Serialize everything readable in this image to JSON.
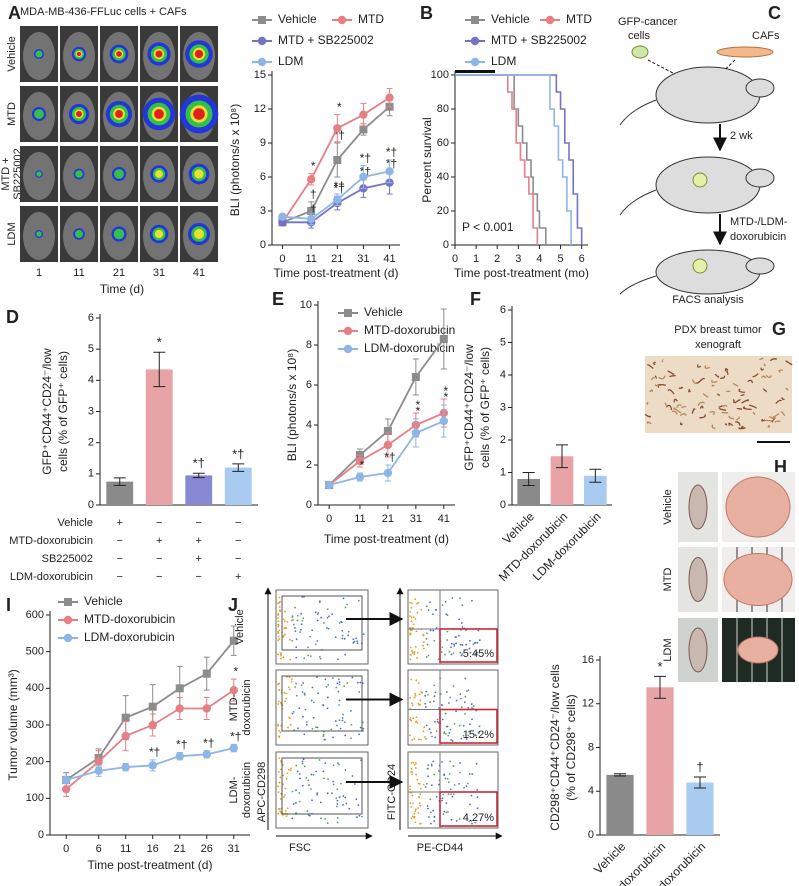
{
  "figure_labels": [
    "A",
    "B",
    "C",
    "D",
    "E",
    "F",
    "G",
    "H",
    "I",
    "J"
  ],
  "imaging": {
    "title": "MDA-MB-436-FFLuc cells + CAFs",
    "rows": [
      [
        "Vehicle"
      ],
      [
        "MTD"
      ],
      [
        "MTD +",
        "SB225002"
      ],
      [
        "LDM"
      ]
    ],
    "columns": [
      1,
      11,
      21,
      31,
      41
    ],
    "xlabel": "Time (d)"
  },
  "schematic": {
    "cancer_cells": [
      "GFP-cancer",
      "cells"
    ],
    "cafs": "CAFs",
    "step1": "2 wk",
    "step2": [
      "MTD-/LDM-",
      "doxorubicin"
    ],
    "step3": "FACS analysis"
  },
  "pdx": {
    "title": [
      "PDX breast tumor",
      "xenograft"
    ]
  },
  "tumors": {
    "rows": [
      "Vehicle",
      "MTD",
      "LDM"
    ]
  },
  "flow": {
    "rows": [
      [
        "Vehicle"
      ],
      [
        "MTD-",
        "doxorubicin"
      ],
      [
        "LDM-",
        "doxorubicin"
      ]
    ],
    "gate_percent": [
      "5.45%",
      "15.2%",
      "4.27%"
    ],
    "x1": "FSC",
    "y1": "APC-CD298",
    "x2": "PE-CD44",
    "y2": "FITC-CD24"
  },
  "chart_data": [
    {
      "type": "line",
      "x": [
        0,
        11,
        21,
        31,
        41
      ],
      "xlim": [
        -4,
        45
      ],
      "xticks": [
        0,
        11,
        21,
        31,
        41
      ],
      "ylim": [
        0,
        15
      ],
      "yticks": [
        0,
        3,
        6,
        9,
        12,
        15
      ],
      "xlabel": "Time post-treatment (d)",
      "ylabel": [
        "BLI (photons/s x 10⁸)"
      ],
      "series": [
        {
          "name": "Vehicle",
          "color": "#8c8c8c",
          "marker": "square",
          "values": [
            2,
            3,
            7.5,
            10.2,
            12.2
          ],
          "errors": [
            0.2,
            0.8,
            1.5,
            0.5,
            0.8
          ],
          "annotations": [
            null,
            "†",
            "*†",
            null,
            null
          ]
        },
        {
          "name": "MTD",
          "color": "#e57f86",
          "marker": "circle",
          "values": [
            2,
            5.8,
            10.3,
            11.5,
            13
          ],
          "errors": [
            0.2,
            0.5,
            1.2,
            1,
            0.8
          ],
          "annotations": [
            null,
            "*",
            "*",
            null,
            null
          ]
        },
        {
          "name": "MTD + SB225002",
          "color": "#7474c7",
          "marker": "circle",
          "values": [
            2,
            2,
            3.7,
            5,
            5.5
          ],
          "errors": [
            0.3,
            0.5,
            0.6,
            0.8,
            1
          ],
          "annotations": [
            null,
            "†",
            "*†",
            "*†",
            "*†"
          ]
        },
        {
          "name": "LDM",
          "color": "#8db6e6",
          "marker": "circle",
          "values": [
            2.5,
            2.3,
            4,
            6,
            6.5
          ],
          "errors": [
            0.2,
            0.5,
            0.5,
            1,
            1
          ],
          "annotations": [
            null,
            null,
            "*†",
            "*†",
            "*†"
          ]
        }
      ]
    },
    {
      "type": "step",
      "xlim": [
        0,
        6.3
      ],
      "xticks": [
        0,
        1,
        2,
        3,
        4,
        5,
        6
      ],
      "ylim": [
        0,
        100
      ],
      "yticks": [
        0,
        20,
        40,
        60,
        80,
        100
      ],
      "xlabel": "Time post-treatment (mo)",
      "ylabel": [
        "Percent survival"
      ],
      "annotation": "P < 0.001",
      "series": [
        {
          "name": "Vehicle",
          "color": "#8c8c8c",
          "marker": "square",
          "x": [
            0,
            2.8,
            2.8,
            3.0,
            3.0,
            3.2,
            3.2,
            3.4,
            3.4,
            3.6,
            3.6,
            3.7,
            3.7,
            3.9,
            3.9,
            4.0,
            4.0,
            4.3,
            4.3
          ],
          "values": [
            100,
            100,
            80,
            80,
            70,
            70,
            60,
            60,
            50,
            50,
            40,
            40,
            30,
            30,
            20,
            20,
            10,
            10,
            0
          ]
        },
        {
          "name": "MTD",
          "color": "#e57f86",
          "marker": "circle",
          "x": [
            0,
            2.5,
            2.5,
            2.7,
            2.7,
            2.9,
            2.9,
            3.1,
            3.1,
            3.3,
            3.3,
            3.5,
            3.5,
            3.7,
            3.7,
            3.9,
            3.9
          ],
          "values": [
            100,
            100,
            90,
            90,
            80,
            80,
            60,
            60,
            50,
            50,
            40,
            40,
            30,
            30,
            10,
            10,
            0
          ]
        },
        {
          "name": "MTD + SB225002",
          "color": "#7474c7",
          "marker": "circle",
          "x": [
            0,
            4.8,
            4.8,
            5.0,
            5.0,
            5.2,
            5.2,
            5.4,
            5.4,
            5.6,
            5.6,
            5.8,
            5.8,
            6.0,
            6.0
          ],
          "values": [
            100,
            100,
            90,
            90,
            80,
            80,
            60,
            60,
            50,
            50,
            30,
            30,
            10,
            10,
            0
          ]
        },
        {
          "name": "LDM",
          "color": "#8db6e6",
          "marker": "circle",
          "x": [
            0,
            4.5,
            4.5,
            4.7,
            4.7,
            4.9,
            4.9,
            5.1,
            5.1,
            5.3,
            5.3,
            5.5,
            5.5
          ],
          "values": [
            100,
            100,
            80,
            80,
            70,
            70,
            50,
            50,
            40,
            40,
            20,
            20,
            0
          ]
        }
      ]
    },
    {
      "type": "bar",
      "ylim": [
        0,
        6
      ],
      "yticks": [
        0,
        1,
        2,
        3,
        4,
        5,
        6
      ],
      "ylabel": [
        "GFP⁺CD44⁺CD24⁻/low",
        "cells (% of GFP⁺ cells)"
      ],
      "values": [
        0.75,
        4.35,
        0.95,
        1.2
      ],
      "errors": [
        0.12,
        0.55,
        0.07,
        0.12
      ],
      "colors": [
        "#8a8a8a",
        "#e8a3a6",
        "#8787d2",
        "#a9cbef"
      ],
      "annotations": [
        null,
        "*",
        "*†",
        "*†"
      ],
      "treatments": [
        {
          "label": "Vehicle",
          "signs": [
            "+",
            "−",
            "−",
            "−"
          ]
        },
        {
          "label": "MTD-doxorubicin",
          "signs": [
            "−",
            "+",
            "+",
            "−"
          ]
        },
        {
          "label": "SB225002",
          "signs": [
            "−",
            "−",
            "+",
            "−"
          ]
        },
        {
          "label": "LDM-doxorubicin",
          "signs": [
            "−",
            "−",
            "−",
            "+"
          ]
        }
      ]
    },
    {
      "type": "line",
      "x": [
        0,
        11,
        21,
        31,
        41
      ],
      "xlim": [
        -4,
        45
      ],
      "xticks": [
        0,
        11,
        21,
        31,
        41
      ],
      "ylim": [
        0,
        10
      ],
      "yticks": [
        0,
        2,
        4,
        6,
        8,
        10
      ],
      "xlabel": "Time post-treatment (d)",
      "ylabel": [
        "BLI (photons/s x 10⁸)"
      ],
      "series": [
        {
          "name": "Vehicle",
          "color": "#8c8c8c",
          "marker": "square",
          "values": [
            1,
            2.5,
            3.7,
            6.4,
            8.3
          ],
          "errors": [
            0.1,
            0.3,
            0.6,
            0.9,
            1.5
          ],
          "annotations": [
            null,
            null,
            null,
            null,
            null
          ]
        },
        {
          "name": "MTD-doxorubicin",
          "color": "#e57f86",
          "marker": "circle",
          "values": [
            1,
            2.2,
            3,
            4,
            4.6
          ],
          "errors": [
            0.1,
            0.3,
            0.6,
            0.6,
            0.7
          ],
          "annotations": [
            null,
            null,
            null,
            "*",
            "*"
          ]
        },
        {
          "name": "LDM-doxorubicin",
          "color": "#8db6e6",
          "marker": "circle",
          "values": [
            1,
            1.4,
            1.6,
            3.6,
            4.2
          ],
          "errors": [
            0.1,
            0.2,
            0.4,
            0.7,
            0.8
          ],
          "annotations": [
            null,
            "*",
            "*†",
            "*",
            "*"
          ]
        }
      ]
    },
    {
      "type": "bar",
      "ylim": [
        0,
        6
      ],
      "yticks": [
        0,
        1,
        2,
        3,
        4,
        5,
        6
      ],
      "ylabel": [
        "GFP⁺CD44⁺CD24⁻/low",
        "cells (% of GFP⁺ cells)"
      ],
      "categories": [
        "Vehicle",
        "MTD-doxorubicin",
        "LDM-doxorubicin"
      ],
      "values": [
        0.8,
        1.5,
        0.9
      ],
      "errors": [
        0.2,
        0.35,
        0.2
      ],
      "colors": [
        "#8a8a8a",
        "#e8a3a6",
        "#a9cbef"
      ],
      "annotations": [
        null,
        null,
        null
      ]
    },
    {
      "type": "line",
      "x": [
        0,
        6,
        11,
        16,
        21,
        26,
        31
      ],
      "xlim": [
        -3,
        34
      ],
      "xticks": [
        0,
        6,
        11,
        16,
        21,
        26,
        31
      ],
      "ylim": [
        0,
        600
      ],
      "yticks": [
        0,
        100,
        200,
        300,
        400,
        500,
        600
      ],
      "xlabel": "Time post-treatment (d)",
      "ylabel": [
        "Tumor volume (mm³)"
      ],
      "series": [
        {
          "name": "Vehicle",
          "color": "#8c8c8c",
          "marker": "square",
          "values": [
            150,
            210,
            320,
            350,
            400,
            440,
            530
          ],
          "errors": [
            20,
            25,
            60,
            60,
            60,
            45,
            40
          ],
          "annotations": [
            null,
            null,
            null,
            null,
            null,
            null,
            null
          ]
        },
        {
          "name": "MTD-doxorubicin",
          "color": "#e57f86",
          "marker": "circle",
          "values": [
            125,
            200,
            270,
            300,
            345,
            345,
            395
          ],
          "errors": [
            20,
            30,
            40,
            30,
            30,
            30,
            30
          ],
          "annotations": [
            null,
            null,
            null,
            null,
            null,
            null,
            "*"
          ]
        },
        {
          "name": "LDM-doxorubicin",
          "color": "#8db6e6",
          "marker": "circle",
          "values": [
            150,
            175,
            185,
            190,
            215,
            220,
            237
          ],
          "errors": [
            10,
            15,
            10,
            15,
            10,
            10,
            10
          ],
          "annotations": [
            null,
            null,
            null,
            "*†",
            "*†",
            "*†",
            "*†"
          ]
        }
      ]
    },
    {
      "type": "bar",
      "ylim": [
        0,
        16
      ],
      "yticks": [
        0,
        4,
        8,
        12,
        16
      ],
      "ylabel": [
        "CD298⁺CD44⁺CD24⁻/low cells",
        "(% of CD298⁺ cells)"
      ],
      "categories": [
        "Vehicle",
        "MTD-doxorubicin",
        "LDM-doxorubicin"
      ],
      "values": [
        5.5,
        13.5,
        4.8
      ],
      "errors": [
        0.1,
        1.0,
        0.5
      ],
      "colors": [
        "#8a8a8a",
        "#e8a3a6",
        "#a9cbef"
      ],
      "annotations": [
        null,
        "*",
        "†"
      ]
    }
  ]
}
